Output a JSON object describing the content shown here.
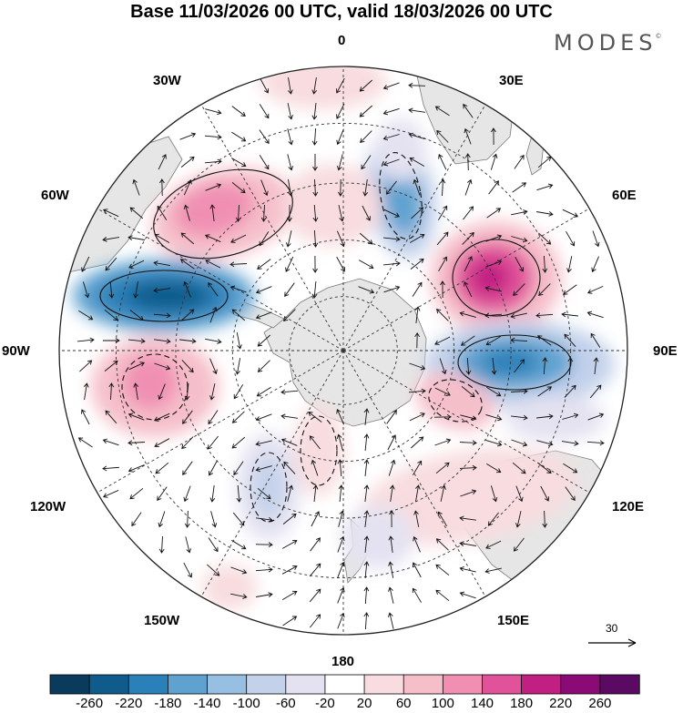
{
  "title": "Base 11/03/2026 00 UTC, valid 18/03/2026 00 UTC",
  "brand": "MODES",
  "brand_mark": "©",
  "longitude_labels": {
    "lon_0": "0",
    "lon_30e": "30E",
    "lon_60e": "60E",
    "lon_90e": "90E",
    "lon_120e": "120E",
    "lon_150e": "150E",
    "lon_180": "180",
    "lon_150w": "150W",
    "lon_120w": "120W",
    "lon_90w": "90W",
    "lon_60w": "60W",
    "lon_30w": "30W"
  },
  "reference_vector": "30",
  "colorbar": {
    "labels": [
      "-260",
      "-220",
      "-180",
      "-140",
      "-100",
      "-60",
      "-20",
      "20",
      "60",
      "100",
      "140",
      "180",
      "220",
      "260"
    ],
    "colors": [
      "#0a3a5c",
      "#0f5c8c",
      "#2a80b8",
      "#5fa2d0",
      "#97bfe2",
      "#c3d1ea",
      "#e4e2f1",
      "#ffffff",
      "#f8dcdf",
      "#f5bfca",
      "#f08fb2",
      "#e0529a",
      "#c21f83",
      "#8a0b75",
      "#5a0a62"
    ]
  },
  "colors": {
    "land": "#e6e6e6",
    "coast": "#7a7a7a",
    "grid": "#333333"
  }
}
